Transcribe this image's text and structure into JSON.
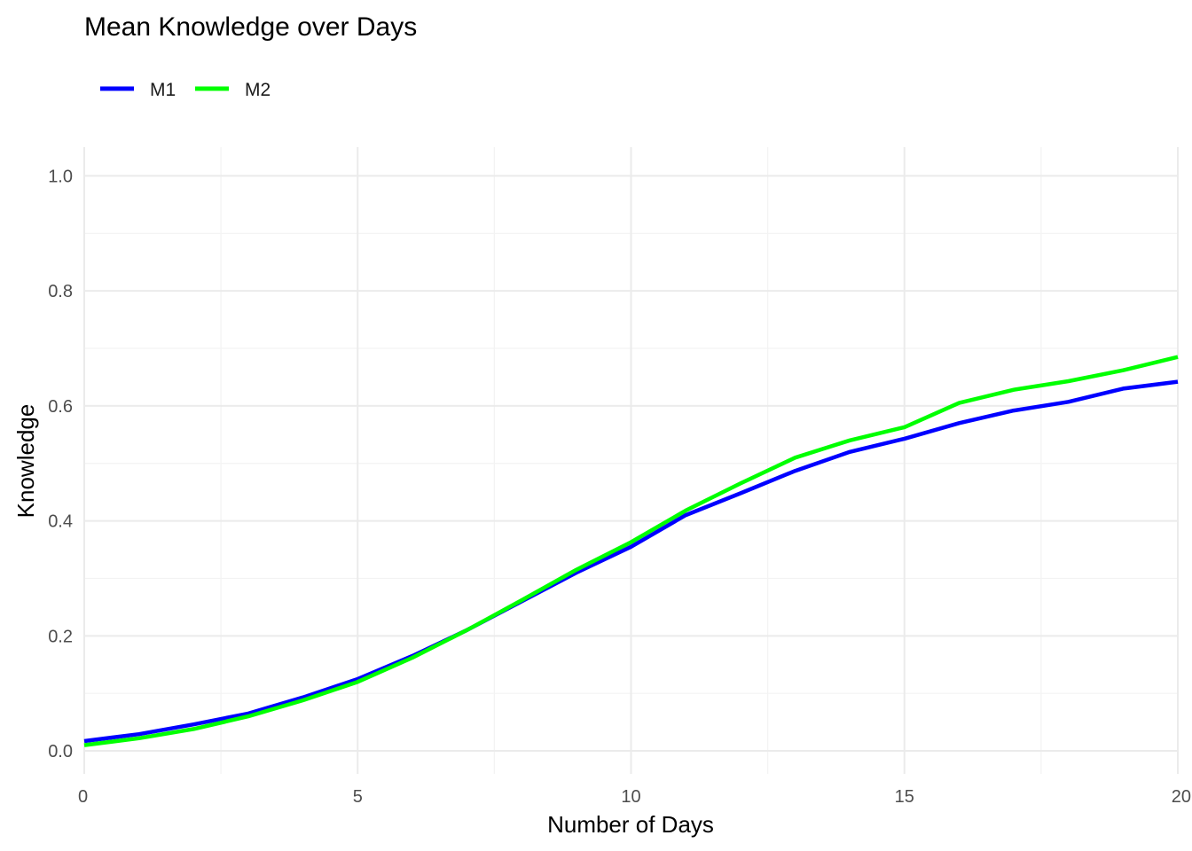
{
  "chart_data": {
    "type": "line",
    "title": "Mean Knowledge over Days",
    "xlabel": "Number of Days",
    "ylabel": "Knowledge",
    "xlim": [
      0,
      20
    ],
    "ylim": [
      -0.04,
      1.05
    ],
    "x_ticks": [
      0,
      5,
      10,
      15,
      20
    ],
    "x_tick_labels": [
      "0",
      "5",
      "10",
      "15",
      "20"
    ],
    "y_ticks": [
      0.0,
      0.2,
      0.4,
      0.6,
      0.8,
      1.0
    ],
    "y_tick_labels": [
      "0.0",
      "0.2",
      "0.4",
      "0.6",
      "0.8",
      "1.0"
    ],
    "grid": true,
    "legend_position": "top-left",
    "x": [
      0,
      1,
      2,
      3,
      4,
      5,
      6,
      7,
      8,
      9,
      10,
      11,
      12,
      13,
      14,
      15,
      16,
      17,
      18,
      19,
      20
    ],
    "series": [
      {
        "name": "M1",
        "color": "#0000ff",
        "values": [
          0.017,
          0.029,
          0.046,
          0.065,
          0.093,
          0.125,
          0.165,
          0.21,
          0.26,
          0.31,
          0.355,
          0.41,
          0.448,
          0.487,
          0.52,
          0.543,
          0.57,
          0.592,
          0.607,
          0.63,
          0.642
        ]
      },
      {
        "name": "M2",
        "color": "#00ff00",
        "values": [
          0.01,
          0.022,
          0.038,
          0.06,
          0.088,
          0.12,
          0.162,
          0.21,
          0.262,
          0.315,
          0.363,
          0.418,
          0.465,
          0.51,
          0.54,
          0.563,
          0.605,
          0.628,
          0.643,
          0.662,
          0.685
        ]
      }
    ]
  }
}
